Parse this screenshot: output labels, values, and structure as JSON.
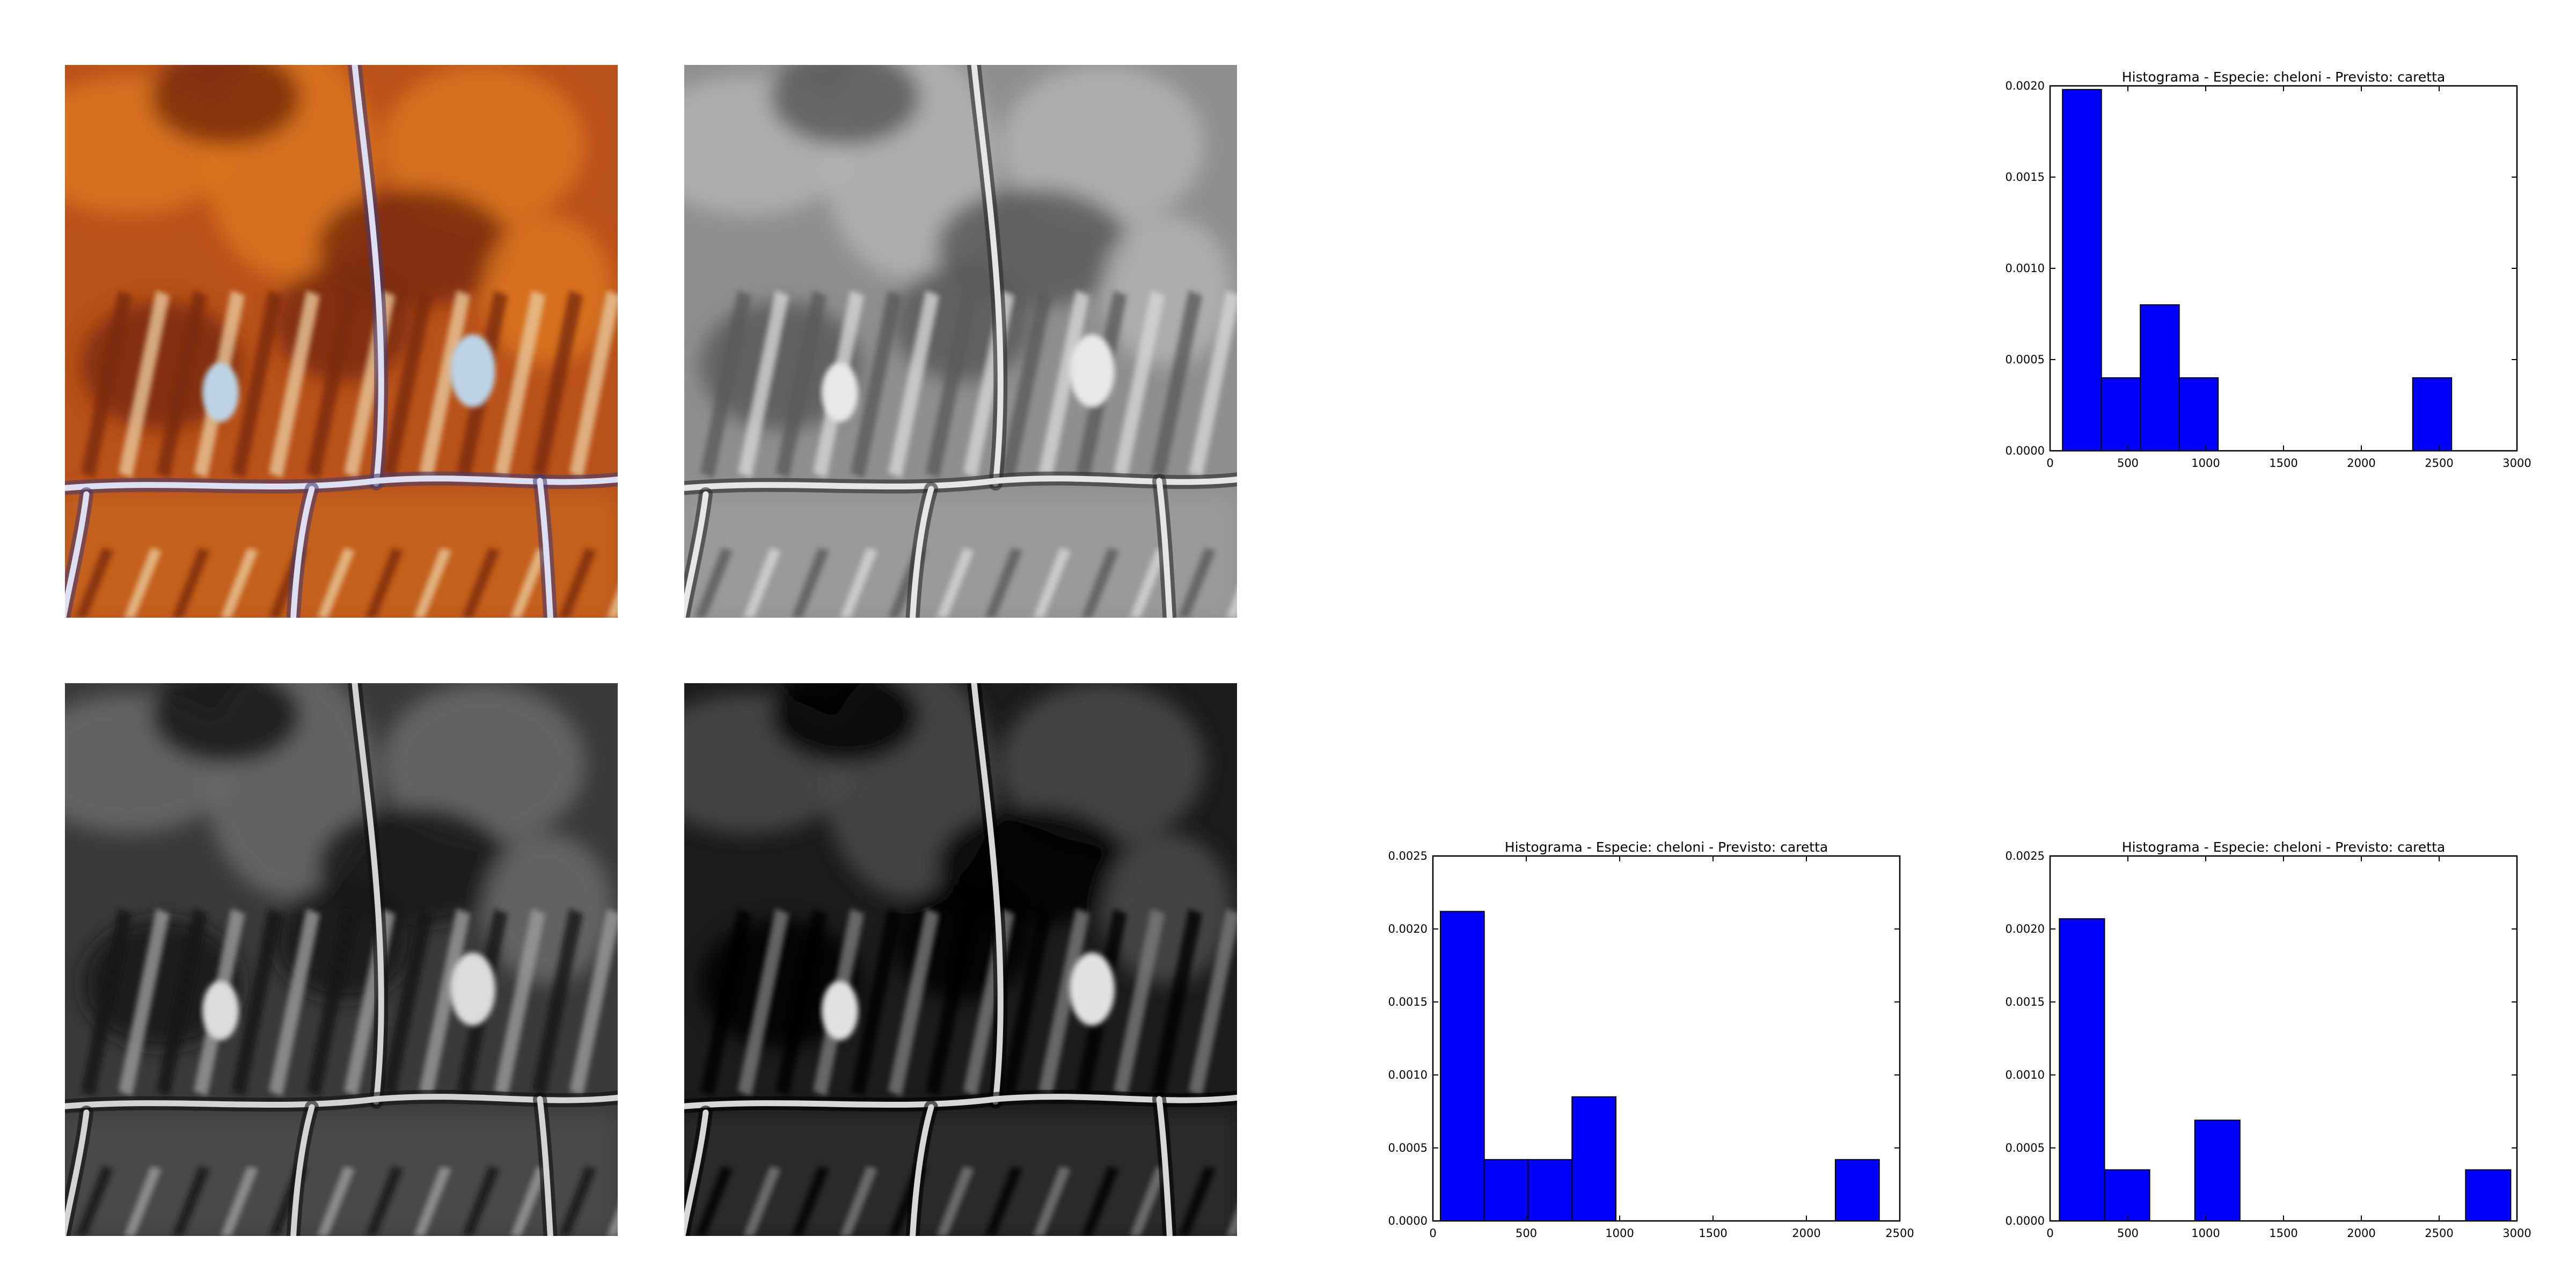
{
  "images": [
    {
      "id": "img-color",
      "name": "turtle-shell-color-image",
      "tone": "color"
    },
    {
      "id": "img-gray1",
      "name": "turtle-shell-grayscale-image",
      "tone": "gray-light"
    },
    {
      "id": "img-gray2",
      "name": "turtle-shell-grayscale-dark-image",
      "tone": "gray-mid"
    },
    {
      "id": "img-gray3",
      "name": "turtle-shell-grayscale-darker-image",
      "tone": "gray-dark"
    }
  ],
  "colors": {
    "bar_fill": "#0000ff",
    "bar_edge": "#000000"
  },
  "chart_data": [
    {
      "type": "bar",
      "title": "Histograma - Especie: cheloni - Previsto: caretta",
      "xlabel": "",
      "ylabel": "",
      "xlim": [
        0,
        3000
      ],
      "ylim": [
        0,
        0.002
      ],
      "x_ticks": [
        0,
        500,
        1000,
        1500,
        2000,
        2500,
        3000
      ],
      "y_ticks": [
        0.0,
        0.0005,
        0.001,
        0.0015,
        0.002
      ],
      "x_tick_labels": [
        "0",
        "500",
        "1000",
        "1500",
        "2000",
        "2500",
        "3000"
      ],
      "y_tick_labels": [
        "0.0000",
        "0.0005",
        "0.0010",
        "0.0015",
        "0.0020"
      ],
      "bins": [
        {
          "x0": 80,
          "x1": 330,
          "value": 0.00198
        },
        {
          "x0": 330,
          "x1": 580,
          "value": 0.0004
        },
        {
          "x0": 580,
          "x1": 830,
          "value": 0.0008
        },
        {
          "x0": 830,
          "x1": 1080,
          "value": 0.0004
        },
        {
          "x0": 1080,
          "x1": 1330,
          "value": 0
        },
        {
          "x0": 1330,
          "x1": 1580,
          "value": 0
        },
        {
          "x0": 1580,
          "x1": 1830,
          "value": 0
        },
        {
          "x0": 1830,
          "x1": 2080,
          "value": 0
        },
        {
          "x0": 2080,
          "x1": 2330,
          "value": 0
        },
        {
          "x0": 2330,
          "x1": 2580,
          "value": 0.0004
        }
      ],
      "grid": false,
      "legend": "none"
    },
    {
      "type": "bar",
      "title": "Histograma - Especie: cheloni - Previsto: caretta",
      "xlabel": "",
      "ylabel": "",
      "xlim": [
        0,
        2500
      ],
      "ylim": [
        0,
        0.0025
      ],
      "x_ticks": [
        0,
        500,
        1000,
        1500,
        2000,
        2500
      ],
      "y_ticks": [
        0.0,
        0.0005,
        0.001,
        0.0015,
        0.002,
        0.0025
      ],
      "x_tick_labels": [
        "0",
        "500",
        "1000",
        "1500",
        "2000",
        "2500"
      ],
      "y_tick_labels": [
        "0.0000",
        "0.0005",
        "0.0010",
        "0.0015",
        "0.0020",
        "0.0025"
      ],
      "bins": [
        {
          "x0": 40,
          "x1": 275,
          "value": 0.00212
        },
        {
          "x0": 275,
          "x1": 510,
          "value": 0.00042
        },
        {
          "x0": 510,
          "x1": 745,
          "value": 0.00042
        },
        {
          "x0": 745,
          "x1": 980,
          "value": 0.00085
        },
        {
          "x0": 980,
          "x1": 1215,
          "value": 0
        },
        {
          "x0": 1215,
          "x1": 1450,
          "value": 0
        },
        {
          "x0": 1450,
          "x1": 1685,
          "value": 0
        },
        {
          "x0": 1685,
          "x1": 1920,
          "value": 0
        },
        {
          "x0": 1920,
          "x1": 2155,
          "value": 0
        },
        {
          "x0": 2155,
          "x1": 2390,
          "value": 0.00042
        }
      ],
      "grid": false,
      "legend": "none"
    },
    {
      "type": "bar",
      "title": "Histograma - Especie: cheloni - Previsto: caretta",
      "xlabel": "",
      "ylabel": "",
      "xlim": [
        0,
        3000
      ],
      "ylim": [
        0,
        0.0025
      ],
      "x_ticks": [
        0,
        500,
        1000,
        1500,
        2000,
        2500,
        3000
      ],
      "y_ticks": [
        0.0,
        0.0005,
        0.001,
        0.0015,
        0.002,
        0.0025
      ],
      "x_tick_labels": [
        "0",
        "500",
        "1000",
        "1500",
        "2000",
        "2500",
        "3000"
      ],
      "y_tick_labels": [
        "0.0000",
        "0.0005",
        "0.0010",
        "0.0015",
        "0.0020",
        "0.0025"
      ],
      "bins": [
        {
          "x0": 60,
          "x1": 350,
          "value": 0.00207
        },
        {
          "x0": 350,
          "x1": 640,
          "value": 0.00035
        },
        {
          "x0": 640,
          "x1": 930,
          "value": 0
        },
        {
          "x0": 930,
          "x1": 1220,
          "value": 0.00069
        },
        {
          "x0": 1220,
          "x1": 1510,
          "value": 0
        },
        {
          "x0": 1510,
          "x1": 1800,
          "value": 0
        },
        {
          "x0": 1800,
          "x1": 2090,
          "value": 0
        },
        {
          "x0": 2090,
          "x1": 2380,
          "value": 0
        },
        {
          "x0": 2380,
          "x1": 2670,
          "value": 0
        },
        {
          "x0": 2670,
          "x1": 2960,
          "value": 0.00035
        }
      ],
      "grid": false,
      "legend": "none"
    }
  ]
}
